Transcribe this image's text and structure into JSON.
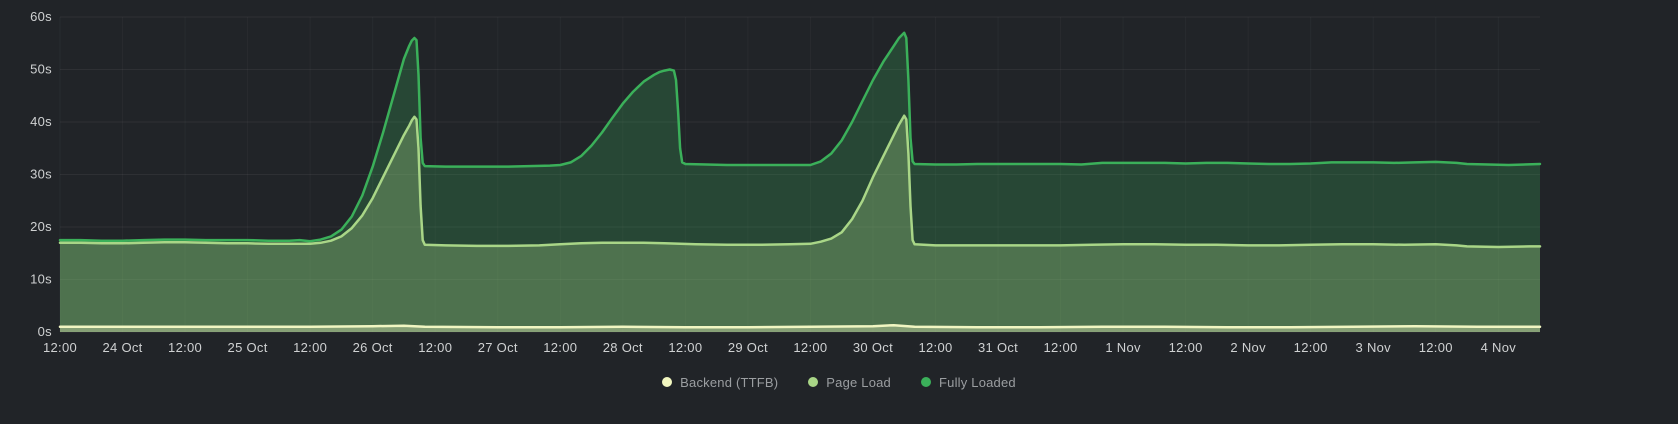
{
  "chart_data": {
    "type": "area",
    "title": "",
    "ylim": [
      0,
      60
    ],
    "xlim": [
      0,
      284
    ],
    "grid": true,
    "legend_position": "bottom-center",
    "y_ticks": [
      {
        "v": 0,
        "label": "0s"
      },
      {
        "v": 10,
        "label": "10s"
      },
      {
        "v": 20,
        "label": "20s"
      },
      {
        "v": 30,
        "label": "30s"
      },
      {
        "v": 40,
        "label": "40s"
      },
      {
        "v": 50,
        "label": "50s"
      },
      {
        "v": 60,
        "label": "60s"
      }
    ],
    "x_ticks": [
      {
        "t": 0,
        "label": "12:00"
      },
      {
        "t": 12,
        "label": "24 Oct"
      },
      {
        "t": 24,
        "label": "12:00"
      },
      {
        "t": 36,
        "label": "25 Oct"
      },
      {
        "t": 48,
        "label": "12:00"
      },
      {
        "t": 60,
        "label": "26 Oct"
      },
      {
        "t": 72,
        "label": "12:00"
      },
      {
        "t": 84,
        "label": "27 Oct"
      },
      {
        "t": 96,
        "label": "12:00"
      },
      {
        "t": 108,
        "label": "28 Oct"
      },
      {
        "t": 120,
        "label": "12:00"
      },
      {
        "t": 132,
        "label": "29 Oct"
      },
      {
        "t": 144,
        "label": "12:00"
      },
      {
        "t": 156,
        "label": "30 Oct"
      },
      {
        "t": 168,
        "label": "12:00"
      },
      {
        "t": 180,
        "label": "31 Oct"
      },
      {
        "t": 192,
        "label": "12:00"
      },
      {
        "t": 204,
        "label": "1 Nov"
      },
      {
        "t": 216,
        "label": "12:00"
      },
      {
        "t": 228,
        "label": "2 Nov"
      },
      {
        "t": 240,
        "label": "12:00"
      },
      {
        "t": 252,
        "label": "3 Nov"
      },
      {
        "t": 264,
        "label": "12:00"
      },
      {
        "t": 276,
        "label": "4 Nov"
      }
    ],
    "series": [
      {
        "id": "fully-loaded",
        "name": "Fully Loaded",
        "color": "#3bb05a",
        "fill": "rgba(59,176,90,0.25)",
        "points": [
          [
            0,
            17.5
          ],
          [
            4,
            17.5
          ],
          [
            8,
            17.4
          ],
          [
            12,
            17.4
          ],
          [
            16,
            17.5
          ],
          [
            20,
            17.6
          ],
          [
            24,
            17.6
          ],
          [
            28,
            17.5
          ],
          [
            32,
            17.5
          ],
          [
            36,
            17.5
          ],
          [
            40,
            17.4
          ],
          [
            44,
            17.4
          ],
          [
            46,
            17.5
          ],
          [
            48,
            17.3
          ],
          [
            50,
            17.6
          ],
          [
            52,
            18.2
          ],
          [
            54,
            19.5
          ],
          [
            56,
            22
          ],
          [
            58,
            26
          ],
          [
            60,
            31.5
          ],
          [
            62,
            38
          ],
          [
            64,
            45
          ],
          [
            65,
            48.5
          ],
          [
            66,
            52
          ],
          [
            67,
            54.5
          ],
          [
            67.5,
            55.5
          ],
          [
            68,
            56
          ],
          [
            68.4,
            55.6
          ],
          [
            68.8,
            49
          ],
          [
            69.2,
            37
          ],
          [
            69.6,
            32.2
          ],
          [
            70,
            31.6
          ],
          [
            74,
            31.5
          ],
          [
            78,
            31.5
          ],
          [
            82,
            31.5
          ],
          [
            86,
            31.5
          ],
          [
            90,
            31.6
          ],
          [
            94,
            31.7
          ],
          [
            96,
            31.8
          ],
          [
            98,
            32.3
          ],
          [
            100,
            33.5
          ],
          [
            102,
            35.5
          ],
          [
            104,
            38
          ],
          [
            106,
            40.8
          ],
          [
            108,
            43.5
          ],
          [
            110,
            45.8
          ],
          [
            112,
            47.7
          ],
          [
            114,
            49
          ],
          [
            115,
            49.5
          ],
          [
            116,
            49.8
          ],
          [
            117,
            50
          ],
          [
            117.8,
            49.8
          ],
          [
            118.2,
            48
          ],
          [
            118.6,
            42
          ],
          [
            119,
            35
          ],
          [
            119.4,
            32.3
          ],
          [
            120,
            32
          ],
          [
            124,
            31.9
          ],
          [
            128,
            31.8
          ],
          [
            132,
            31.8
          ],
          [
            136,
            31.8
          ],
          [
            140,
            31.8
          ],
          [
            144,
            31.8
          ],
          [
            146,
            32.5
          ],
          [
            148,
            34
          ],
          [
            150,
            36.5
          ],
          [
            152,
            40
          ],
          [
            154,
            44
          ],
          [
            156,
            48
          ],
          [
            158,
            51.5
          ],
          [
            159,
            53
          ],
          [
            160,
            54.5
          ],
          [
            161,
            56
          ],
          [
            162,
            57
          ],
          [
            162.4,
            56
          ],
          [
            162.8,
            48
          ],
          [
            163.2,
            37
          ],
          [
            163.6,
            32.5
          ],
          [
            164,
            32
          ],
          [
            168,
            31.9
          ],
          [
            172,
            31.9
          ],
          [
            176,
            32
          ],
          [
            180,
            32
          ],
          [
            184,
            32
          ],
          [
            188,
            32
          ],
          [
            192,
            32
          ],
          [
            196,
            31.9
          ],
          [
            200,
            32.2
          ],
          [
            204,
            32.2
          ],
          [
            208,
            32.2
          ],
          [
            212,
            32.2
          ],
          [
            216,
            32.1
          ],
          [
            220,
            32.2
          ],
          [
            224,
            32.2
          ],
          [
            228,
            32.1
          ],
          [
            232,
            32
          ],
          [
            236,
            32
          ],
          [
            240,
            32.1
          ],
          [
            244,
            32.3
          ],
          [
            248,
            32.3
          ],
          [
            252,
            32.3
          ],
          [
            256,
            32.2
          ],
          [
            260,
            32.3
          ],
          [
            264,
            32.4
          ],
          [
            268,
            32.2
          ],
          [
            270,
            32
          ],
          [
            274,
            31.9
          ],
          [
            278,
            31.8
          ],
          [
            284,
            32
          ]
        ]
      },
      {
        "id": "page-load",
        "name": "Page Load",
        "color": "#a9d687",
        "fill": "rgba(169,214,135,0.30)",
        "points": [
          [
            0,
            17
          ],
          [
            4,
            17
          ],
          [
            8,
            16.9
          ],
          [
            12,
            16.9
          ],
          [
            16,
            17
          ],
          [
            20,
            17.1
          ],
          [
            24,
            17.1
          ],
          [
            28,
            17
          ],
          [
            32,
            16.9
          ],
          [
            36,
            16.9
          ],
          [
            40,
            16.8
          ],
          [
            44,
            16.8
          ],
          [
            48,
            16.8
          ],
          [
            50,
            17
          ],
          [
            52,
            17.4
          ],
          [
            54,
            18.2
          ],
          [
            56,
            19.8
          ],
          [
            58,
            22.2
          ],
          [
            60,
            25.5
          ],
          [
            62,
            29.5
          ],
          [
            64,
            33.5
          ],
          [
            65,
            35.5
          ],
          [
            66,
            37.5
          ],
          [
            67,
            39.3
          ],
          [
            67.5,
            40.3
          ],
          [
            68,
            41
          ],
          [
            68.4,
            40.5
          ],
          [
            68.8,
            35
          ],
          [
            69.2,
            24
          ],
          [
            69.6,
            17.5
          ],
          [
            70,
            16.6
          ],
          [
            74,
            16.5
          ],
          [
            80,
            16.4
          ],
          [
            86,
            16.4
          ],
          [
            92,
            16.5
          ],
          [
            96,
            16.7
          ],
          [
            100,
            16.9
          ],
          [
            104,
            17
          ],
          [
            108,
            17
          ],
          [
            112,
            17
          ],
          [
            116,
            16.9
          ],
          [
            119,
            16.8
          ],
          [
            122,
            16.7
          ],
          [
            128,
            16.6
          ],
          [
            134,
            16.6
          ],
          [
            140,
            16.7
          ],
          [
            144,
            16.8
          ],
          [
            146,
            17.2
          ],
          [
            148,
            17.8
          ],
          [
            150,
            19
          ],
          [
            152,
            21.5
          ],
          [
            154,
            25
          ],
          [
            156,
            29.5
          ],
          [
            158,
            33.5
          ],
          [
            159,
            35.5
          ],
          [
            160,
            37.5
          ],
          [
            161,
            39.5
          ],
          [
            162,
            41.2
          ],
          [
            162.4,
            40.5
          ],
          [
            162.8,
            34
          ],
          [
            163.2,
            24
          ],
          [
            163.6,
            17.5
          ],
          [
            164,
            16.7
          ],
          [
            168,
            16.5
          ],
          [
            174,
            16.5
          ],
          [
            180,
            16.5
          ],
          [
            186,
            16.5
          ],
          [
            192,
            16.5
          ],
          [
            198,
            16.6
          ],
          [
            204,
            16.7
          ],
          [
            210,
            16.7
          ],
          [
            216,
            16.6
          ],
          [
            222,
            16.6
          ],
          [
            228,
            16.5
          ],
          [
            234,
            16.5
          ],
          [
            240,
            16.6
          ],
          [
            246,
            16.7
          ],
          [
            252,
            16.7
          ],
          [
            258,
            16.6
          ],
          [
            264,
            16.7
          ],
          [
            268,
            16.5
          ],
          [
            270,
            16.3
          ],
          [
            276,
            16.2
          ],
          [
            282,
            16.3
          ],
          [
            284,
            16.3
          ]
        ]
      },
      {
        "id": "backend-ttfb",
        "name": "Backend (TTFB)",
        "color": "#f1f6c2",
        "fill": "rgba(241,246,194,0.35)",
        "points": [
          [
            0,
            1
          ],
          [
            12,
            1
          ],
          [
            24,
            1
          ],
          [
            36,
            1
          ],
          [
            48,
            1
          ],
          [
            60,
            1.1
          ],
          [
            66,
            1.2
          ],
          [
            70,
            1
          ],
          [
            84,
            0.9
          ],
          [
            96,
            0.9
          ],
          [
            108,
            1
          ],
          [
            120,
            0.9
          ],
          [
            132,
            0.9
          ],
          [
            144,
            1
          ],
          [
            156,
            1.1
          ],
          [
            160,
            1.3
          ],
          [
            164,
            1
          ],
          [
            176,
            0.9
          ],
          [
            188,
            0.9
          ],
          [
            200,
            1
          ],
          [
            212,
            1
          ],
          [
            224,
            0.9
          ],
          [
            236,
            0.9
          ],
          [
            248,
            1
          ],
          [
            260,
            1.1
          ],
          [
            272,
            1
          ],
          [
            284,
            1
          ]
        ]
      }
    ],
    "legend": [
      {
        "id": "backend-ttfb",
        "label": "Backend (TTFB)",
        "color": "#f2f7c0"
      },
      {
        "id": "page-load",
        "label": "Page Load",
        "color": "#a9d687"
      },
      {
        "id": "fully-loaded",
        "label": "Fully Loaded",
        "color": "#3bb05a"
      }
    ]
  }
}
